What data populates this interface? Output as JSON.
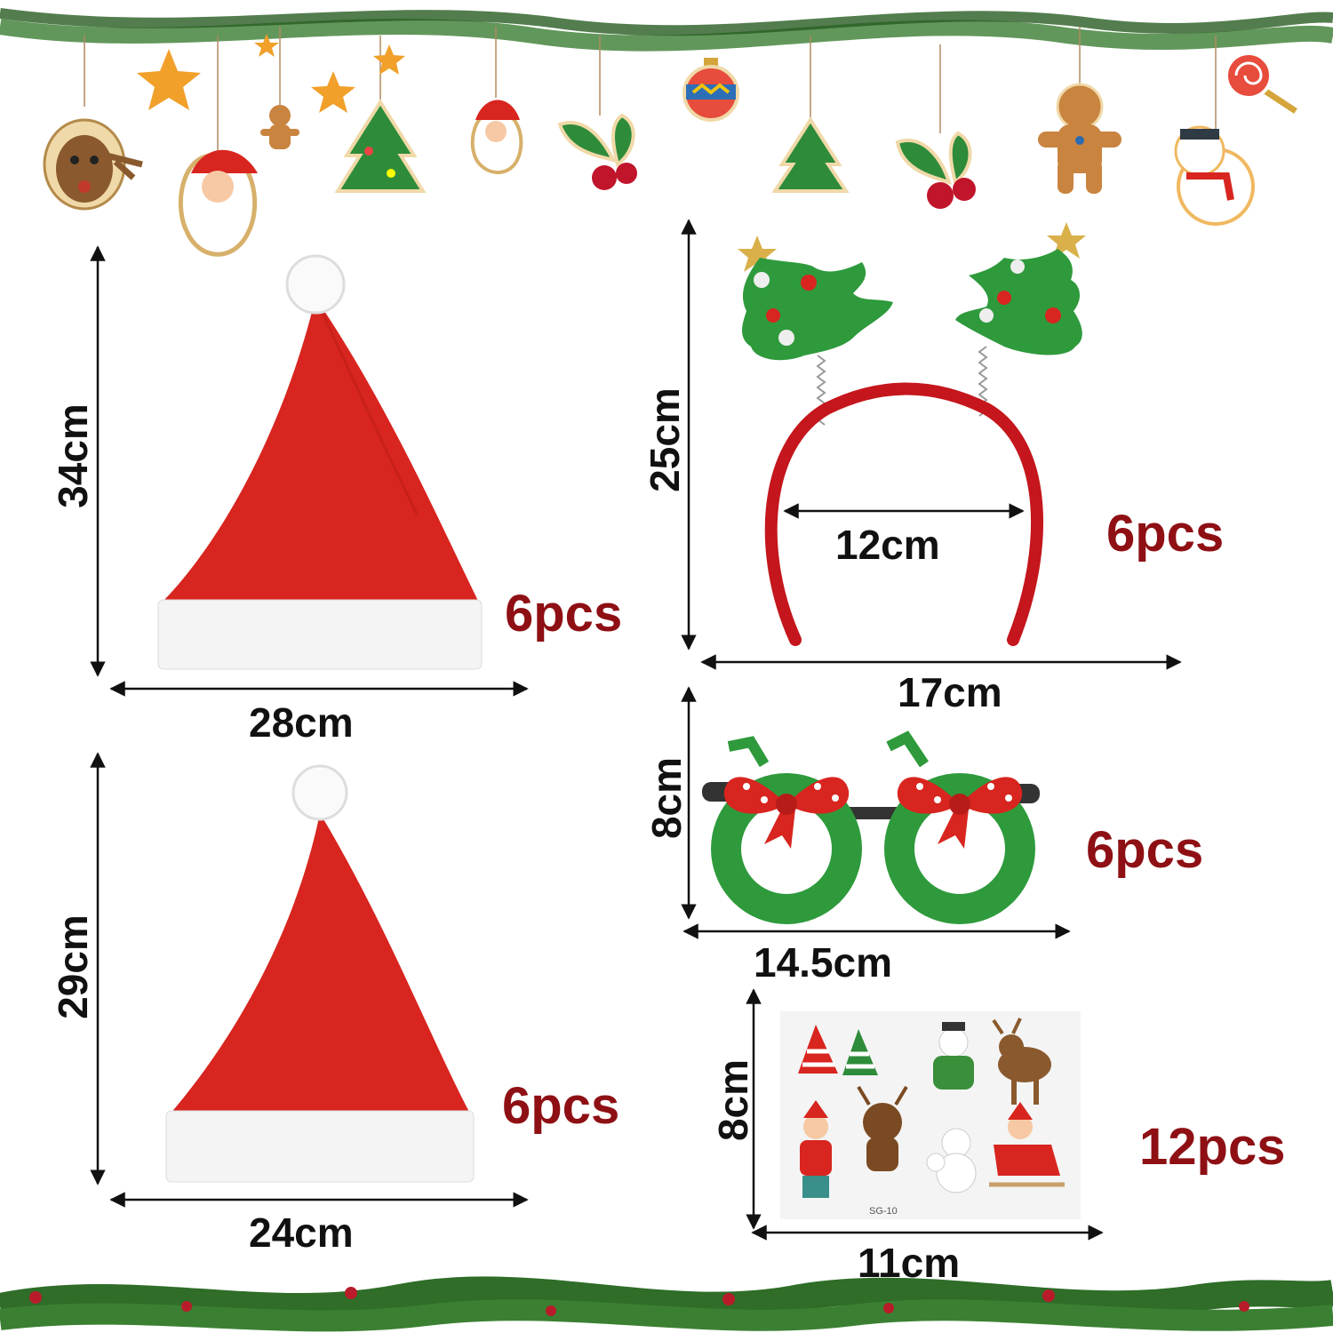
{
  "colors": {
    "quantity_text": "#8e1014",
    "dimension_text": "#111111",
    "hat_red": "#d8251f",
    "hat_trim": "#f4f4f4",
    "pine_green": "#2f7a2c",
    "glitter_green": "#2e9a3c",
    "band_red": "#c4161c"
  },
  "decor": {
    "top_garland_icons": [
      "reindeer-icon",
      "santa-icon",
      "gingerbread-icon",
      "tree-icon",
      "star-icon",
      "santa-icon",
      "holly-icon",
      "ornament-icon",
      "tree-icon",
      "holly-icon",
      "gingerbread-icon",
      "lollipop-icon",
      "snowman-icon"
    ],
    "bottom_garland": "pine-garland"
  },
  "items": {
    "large_hat": {
      "icon": "santa-hat-icon",
      "height": "34cm",
      "width": "28cm",
      "quantity": "6pcs"
    },
    "small_hat": {
      "icon": "santa-hat-icon",
      "height": "29cm",
      "width": "24cm",
      "quantity": "6pcs"
    },
    "headband": {
      "icon": "tree-headband-icon",
      "height": "25cm",
      "band_width": "12cm",
      "width": "17cm",
      "quantity": "6pcs"
    },
    "glasses": {
      "icon": "wreath-glasses-icon",
      "height": "8cm",
      "width": "14.5cm",
      "quantity": "6pcs"
    },
    "stickers": {
      "icon": "tattoo-sticker-sheet-icon",
      "height": "8cm",
      "width": "11cm",
      "quantity": "12pcs",
      "sheet_code": "SG-10"
    }
  }
}
